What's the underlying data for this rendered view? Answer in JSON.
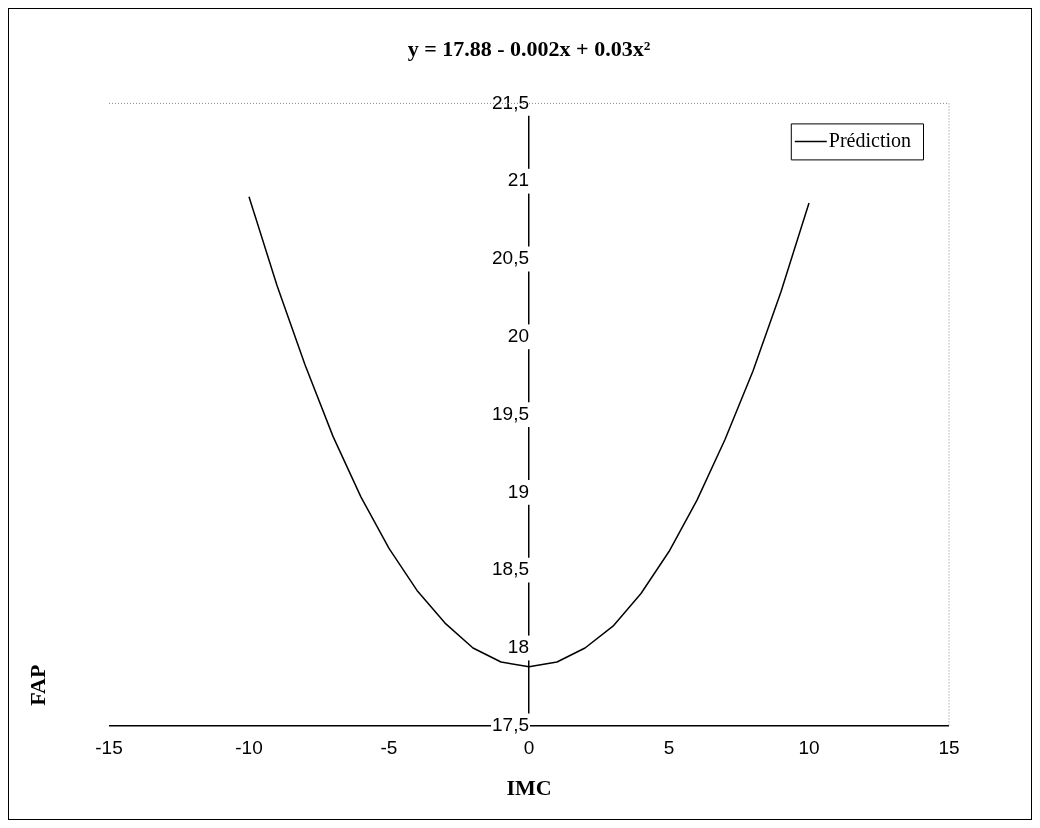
{
  "chart_data": {
    "type": "line",
    "title": "y = 17.88 - 0.002x + 0.03x²",
    "xlabel": "IMC",
    "ylabel": "FAP",
    "x": [
      -10,
      -9,
      -8,
      -7,
      -6,
      -5,
      -4,
      -3,
      -2,
      -1,
      0,
      1,
      2,
      3,
      4,
      5,
      6,
      7,
      8,
      9,
      10
    ],
    "series": [
      {
        "name": "Prédiction",
        "color": "#000000",
        "values": [
          20.9,
          20.33,
          19.82,
          19.36,
          18.97,
          18.64,
          18.37,
          18.16,
          18.0,
          17.91,
          17.88,
          17.91,
          18.0,
          18.14,
          18.35,
          18.62,
          18.95,
          19.34,
          19.78,
          20.29,
          20.86
        ]
      }
    ],
    "xlim": [
      -15,
      15
    ],
    "xticks": [
      -15,
      -10,
      -5,
      0,
      5,
      10,
      15
    ],
    "ylim": [
      17.5,
      21.5
    ],
    "yticks": [
      {
        "value": 17.5,
        "label": "17,5"
      },
      18,
      {
        "value": 18.5,
        "label": "18,5"
      },
      19,
      {
        "value": 19.5,
        "label": "19,5"
      },
      20,
      {
        "value": 20.5,
        "label": "20,5"
      },
      21,
      {
        "value": 21.5,
        "label": "21,5"
      }
    ],
    "grid": false,
    "legend": "top right",
    "marker": "none",
    "line_style": "solid"
  }
}
